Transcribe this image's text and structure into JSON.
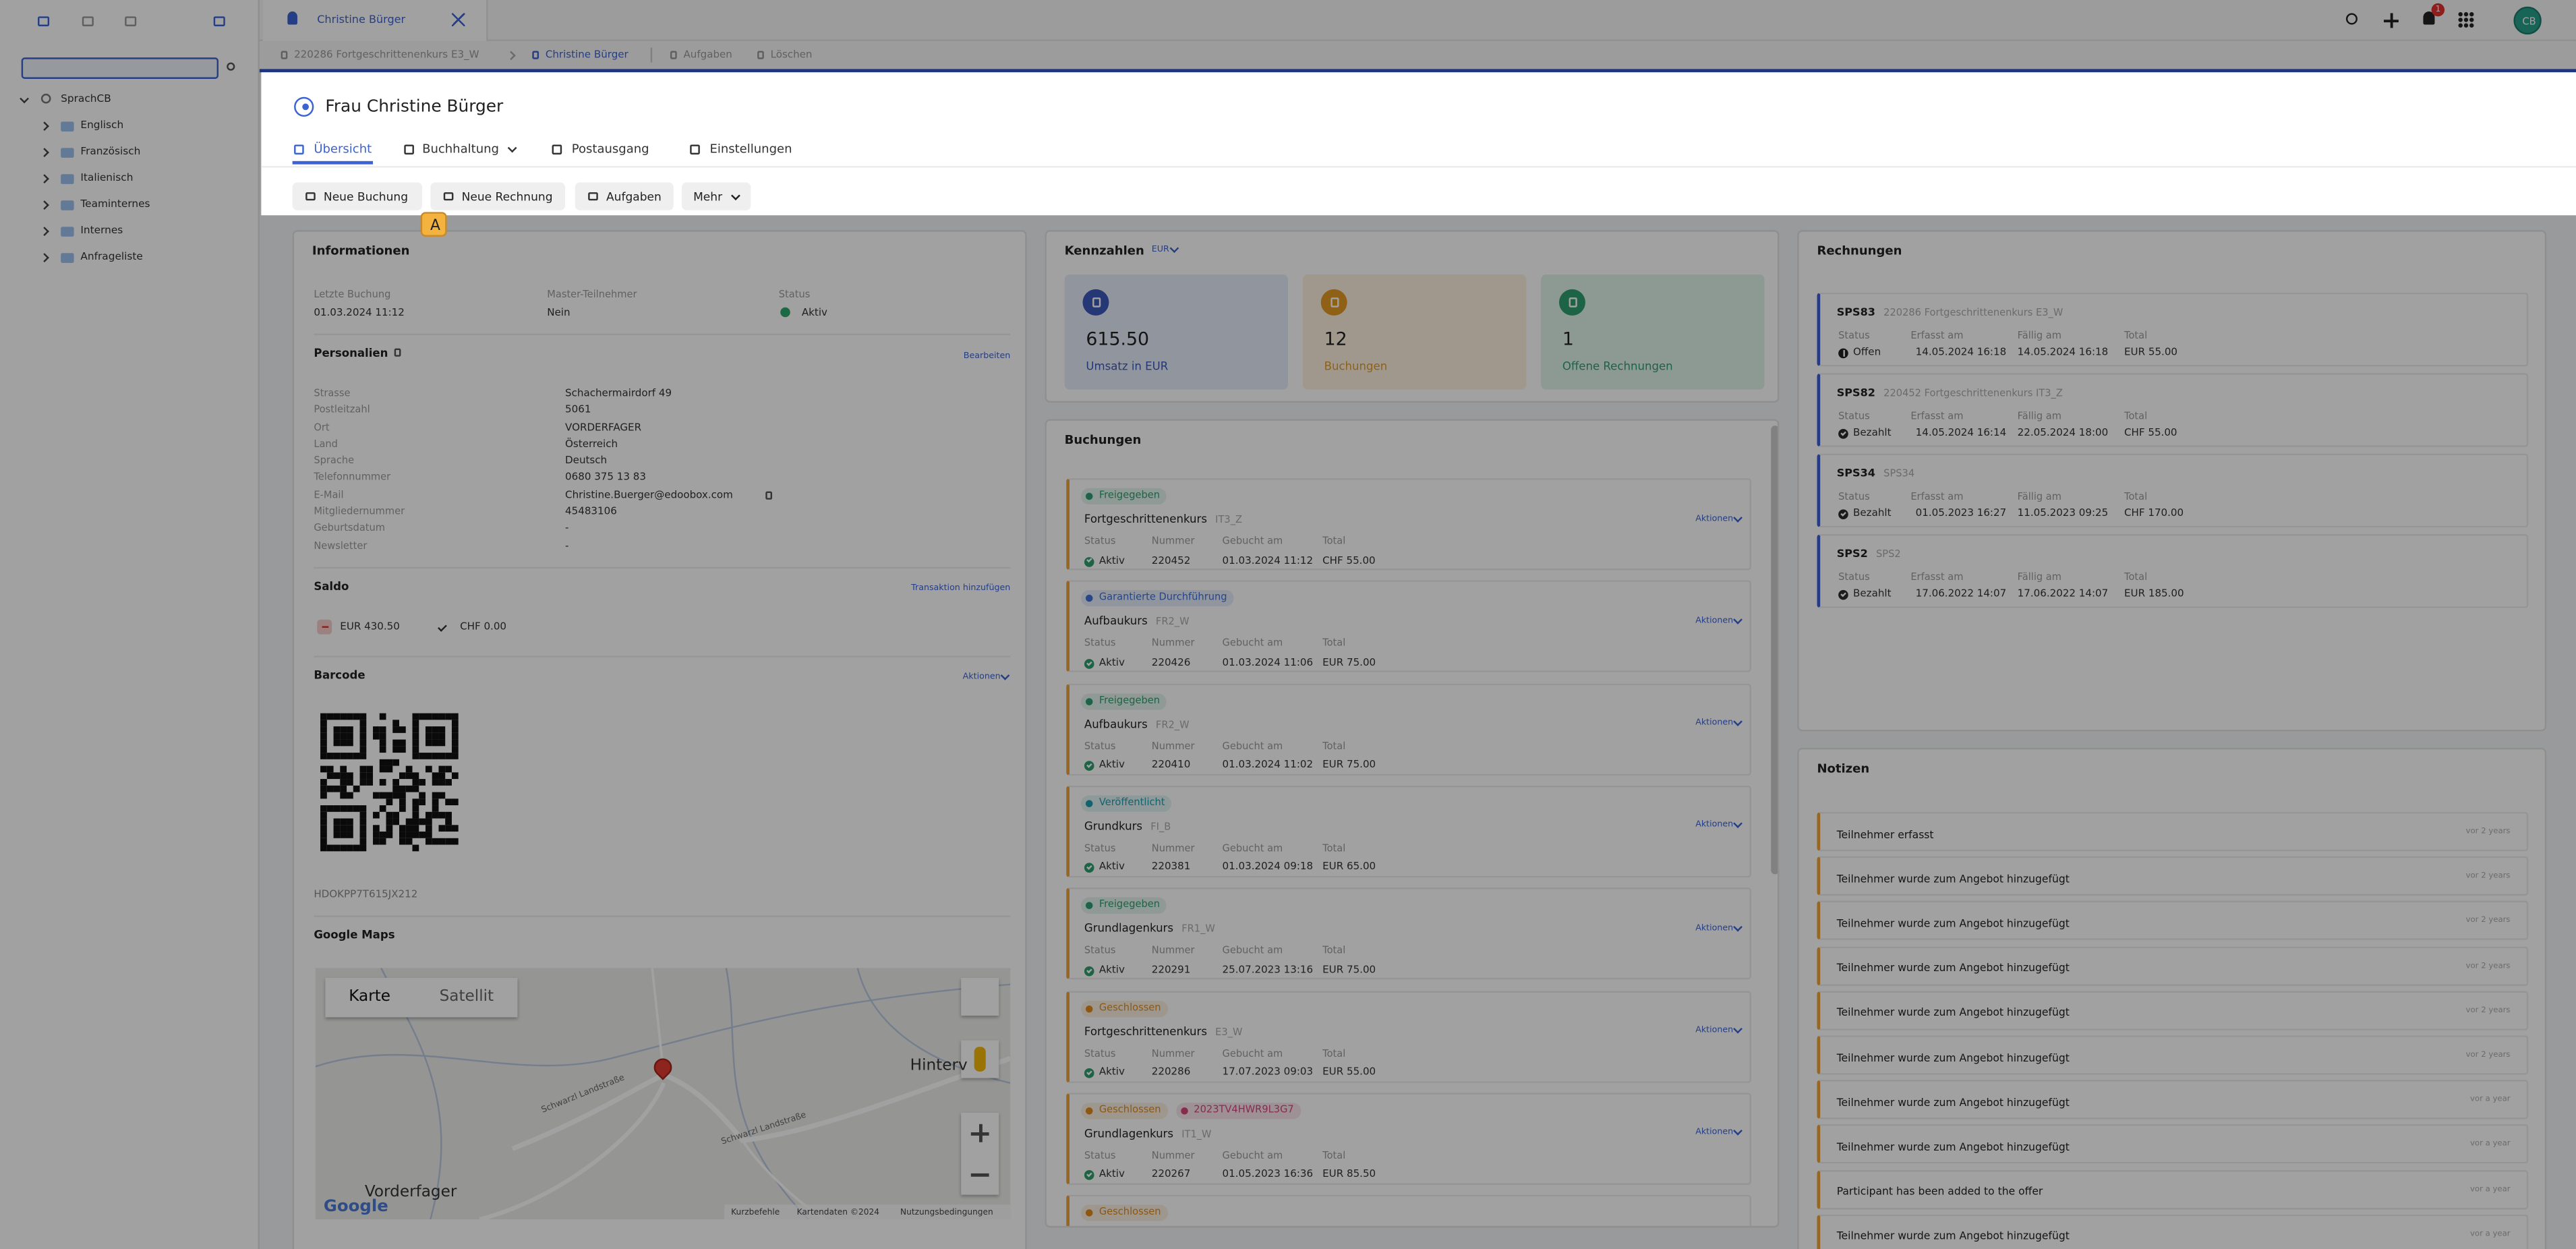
{
  "app": {
    "tab": "Christine Bürger",
    "breadcrumb": [
      "220286 Fortgeschrittenenkurs E3_W",
      "Christine Bürger",
      "Aufgaben",
      "Löschen"
    ],
    "notifications": "1",
    "user_initials": "CB"
  },
  "sidebar": {
    "root": "SprachCB",
    "folders": [
      "Englisch",
      "Französisch",
      "Italienisch",
      "Teaminternes",
      "Internes",
      "Anfrageliste"
    ]
  },
  "header": {
    "title": "Frau Christine Bürger",
    "tabs": [
      "Übersicht",
      "Buchhaltung",
      "Postausgang",
      "Einstellungen"
    ],
    "buttons": [
      "Neue Buchung",
      "Neue Rechnung",
      "Aufgaben",
      "Mehr"
    ],
    "shortcut_hint": "A"
  },
  "informationen": {
    "title": "Informationen",
    "summary": [
      {
        "label": "Letzte Buchung",
        "value": "01.03.2024 11:12"
      },
      {
        "label": "Master-Teilnehmer",
        "value": "Nein"
      },
      {
        "label": "Status",
        "value": "Aktiv"
      }
    ],
    "personalien": {
      "title": "Personalien",
      "action": "Bearbeiten",
      "fields": [
        {
          "label": "Strasse",
          "value": "Schachermairdorf 49"
        },
        {
          "label": "Postleitzahl",
          "value": "5061"
        },
        {
          "label": "Ort",
          "value": "VORDERFAGER"
        },
        {
          "label": "Land",
          "value": "Österreich"
        },
        {
          "label": "Sprache",
          "value": "Deutsch"
        },
        {
          "label": "Telefonnummer",
          "value": "0680 375 13 83"
        },
        {
          "label": "E-Mail",
          "value": "Christine.Buerger@edoobox.com"
        },
        {
          "label": "Mitgliedernummer",
          "value": "45483106"
        },
        {
          "label": "Geburtsdatum",
          "value": "-"
        },
        {
          "label": "Newsletter",
          "value": "-"
        }
      ]
    },
    "saldo": {
      "title": "Saldo",
      "action": "Transaktion hinzufügen",
      "balances": [
        "EUR 430.50",
        "CHF 0.00"
      ]
    },
    "barcode": {
      "title": "Barcode",
      "action": "Aktionen",
      "code": "HDOKPP7T615JX212"
    },
    "google_maps": {
      "title": "Google Maps",
      "map_types": [
        "Karte",
        "Satellit"
      ],
      "places": [
        "Vorderfager",
        "Hinterv"
      ],
      "roads": [
        "Schwarzl Landstraße",
        "Schwarzl Landstraße"
      ],
      "logo": "Google",
      "footer": [
        "Kurzbefehle",
        "Kartendaten ©2024",
        "Nutzungsbedingungen"
      ]
    }
  },
  "kennzahlen": {
    "title": "Kennzahlen",
    "currency": "EUR",
    "tiles": [
      {
        "value": "615.50",
        "label": "Umsatz in EUR"
      },
      {
        "value": "12",
        "label": "Buchungen"
      },
      {
        "value": "1",
        "label": "Offene Rechnungen"
      }
    ]
  },
  "buchungen": {
    "title": "Buchungen",
    "columns": [
      "Status",
      "Nummer",
      "Gebucht am",
      "Total"
    ],
    "action": "Aktionen",
    "items": [
      {
        "badges": [
          {
            "text": "Freigegeben",
            "color": "#2f9e6e"
          }
        ],
        "course": "Fortgeschrittenenkurs",
        "code": "IT3_Z",
        "status": "Aktiv",
        "number": "220452",
        "booked": "01.03.2024 11:12",
        "total": "CHF 55.00"
      },
      {
        "badges": [
          {
            "text": "Garantierte Durchführung",
            "color": "#3f6fd8"
          }
        ],
        "course": "Aufbaukurs",
        "code": "FR2_W",
        "status": "Aktiv",
        "number": "220426",
        "booked": "01.03.2024 11:06",
        "total": "EUR 75.00"
      },
      {
        "badges": [
          {
            "text": "Freigegeben",
            "color": "#2f9e6e"
          }
        ],
        "course": "Aufbaukurs",
        "code": "FR2_W",
        "status": "Aktiv",
        "number": "220410",
        "booked": "01.03.2024 11:02",
        "total": "EUR 75.00"
      },
      {
        "badges": [
          {
            "text": "Veröffentlicht",
            "color": "#1f9bb0"
          }
        ],
        "course": "Grundkurs",
        "code": "FI_B",
        "status": "Aktiv",
        "number": "220381",
        "booked": "01.03.2024 09:18",
        "total": "EUR 65.00"
      },
      {
        "badges": [
          {
            "text": "Freigegeben",
            "color": "#2f9e6e"
          }
        ],
        "course": "Grundlagenkurs",
        "code": "FR1_W",
        "status": "Aktiv",
        "number": "220291",
        "booked": "25.07.2023 13:16",
        "total": "EUR 75.00"
      },
      {
        "badges": [
          {
            "text": "Geschlossen",
            "color": "#e08a1e"
          }
        ],
        "course": "Fortgeschrittenenkurs",
        "code": "E3_W",
        "status": "Aktiv",
        "number": "220286",
        "booked": "17.07.2023 09:03",
        "total": "EUR 55.00"
      },
      {
        "badges": [
          {
            "text": "Geschlossen",
            "color": "#e08a1e"
          },
          {
            "text": "2023TV4HWR9L3G7",
            "color": "#d6457c"
          }
        ],
        "course": "Grundlagenkurs",
        "code": "IT1_W",
        "status": "Aktiv",
        "number": "220267",
        "booked": "01.05.2023 16:36",
        "total": "EUR 85.50"
      },
      {
        "badges": [
          {
            "text": "Geschlossen",
            "color": "#e08a1e"
          }
        ]
      }
    ]
  },
  "rechnungen": {
    "title": "Rechnungen",
    "columns": [
      "Status",
      "Erfasst am",
      "Fällig am",
      "Total"
    ],
    "items": [
      {
        "id": "SPS83",
        "reference": "220286 Fortgeschrittenenkurs E3_W",
        "status": "Offen",
        "created": "14.05.2024 16:18",
        "due": "14.05.2024 16:18",
        "total": "EUR 55.00"
      },
      {
        "id": "SPS82",
        "reference": "220452 Fortgeschrittenenkurs IT3_Z",
        "status": "Bezahlt",
        "created": "14.05.2024 16:14",
        "due": "22.05.2024 18:00",
        "total": "CHF 55.00"
      },
      {
        "id": "SPS34",
        "reference": "SPS34",
        "status": "Bezahlt",
        "created": "01.05.2023 16:27",
        "due": "11.05.2023 09:25",
        "total": "CHF 170.00"
      },
      {
        "id": "SPS2",
        "reference": "SPS2",
        "status": "Bezahlt",
        "created": "17.06.2022 14:07",
        "due": "17.06.2022 14:07",
        "total": "EUR 185.00"
      }
    ]
  },
  "notizen": {
    "title": "Notizen",
    "items": [
      {
        "text": "Teilnehmer erfasst",
        "time": "vor 2 years"
      },
      {
        "text": "Teilnehmer wurde zum Angebot hinzugefügt",
        "time": "vor 2 years"
      },
      {
        "text": "Teilnehmer wurde zum Angebot hinzugefügt",
        "time": "vor 2 years"
      },
      {
        "text": "Teilnehmer wurde zum Angebot hinzugefügt",
        "time": "vor 2 years"
      },
      {
        "text": "Teilnehmer wurde zum Angebot hinzugefügt",
        "time": "vor 2 years"
      },
      {
        "text": "Teilnehmer wurde zum Angebot hinzugefügt",
        "time": "vor 2 years"
      },
      {
        "text": "Teilnehmer wurde zum Angebot hinzugefügt",
        "time": "vor a year"
      },
      {
        "text": "Teilnehmer wurde zum Angebot hinzugefügt",
        "time": "vor a year"
      },
      {
        "text": "Participant has been added to the offer",
        "time": "vor a year"
      },
      {
        "text": "Teilnehmer wurde zum Angebot hinzugefügt",
        "time": "vor a year"
      }
    ]
  }
}
